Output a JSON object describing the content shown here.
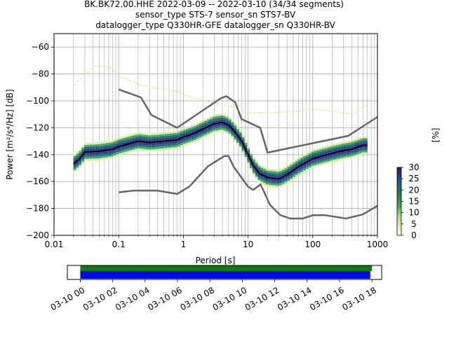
{
  "title": {
    "line1": "BK.BK72.00.HHE   2022-03-09 -- 2022-03-10  (34/34 segments)",
    "line2": "sensor_type STS-7 sensor_sn STS7-BV",
    "line3": "datalogger_type Q330HR-GFE datalogger_sn Q330HR-BV"
  },
  "colors": {
    "noise_model": "#666666",
    "mode_line": "#000000",
    "coverage_data": "#008000",
    "coverage_gaps": "#0000ff",
    "grid": "#b0b0b0"
  },
  "chart_data": [
    {
      "type": "heatmap",
      "name": "ppsd",
      "xlabel": "Period [s]",
      "ylabel": "Power [m²/s⁴/Hz] [dB]",
      "xscale": "log",
      "xlim": [
        0.01,
        1000
      ],
      "ylim": [
        -200,
        -50
      ],
      "xticks": [
        0.01,
        0.1,
        1,
        10,
        100,
        1000
      ],
      "xtick_labels": [
        "0.01",
        "0.1",
        "1",
        "10",
        "100",
        "1000"
      ],
      "yticks": [
        -200,
        -180,
        -160,
        -140,
        -120,
        -100,
        -80,
        -60
      ],
      "ytick_labels": [
        "−200",
        "−180",
        "−160",
        "−140",
        "−120",
        "−100",
        "−80",
        "−60"
      ],
      "grid": true,
      "colorbar": {
        "label": "[%]",
        "range": [
          0,
          30
        ],
        "ticks": [
          0,
          5,
          10,
          15,
          20,
          25,
          30
        ],
        "tick_labels": [
          "0",
          "5",
          "10",
          "15",
          "20",
          "25",
          "30"
        ],
        "colors": [
          "#ffffe5",
          "#d9f0a3",
          "#addd8e",
          "#41ab5d",
          "#238b45",
          "#1d6b7d",
          "#2c3e8a",
          "#3f0f5c"
        ]
      },
      "mode_line": {
        "period": [
          0.02,
          0.025,
          0.03,
          0.05,
          0.08,
          0.1,
          0.2,
          0.3,
          0.5,
          0.8,
          1,
          1.5,
          2,
          3,
          4,
          5,
          6,
          8,
          10,
          12,
          15,
          20,
          30,
          40,
          60,
          100,
          200,
          300,
          400,
          600,
          700
        ],
        "power": [
          -147,
          -143,
          -138,
          -137.5,
          -136,
          -134,
          -130,
          -131,
          -130,
          -129,
          -127,
          -124,
          -121,
          -117,
          -116,
          -118,
          -122,
          -130,
          -140,
          -148,
          -154,
          -157,
          -158,
          -155,
          -149,
          -143,
          -139,
          -137,
          -136,
          -133,
          -133
        ]
      },
      "noise_model_high": {
        "period": [
          0.1,
          0.22,
          0.32,
          0.8,
          3.8,
          4.6,
          6.3,
          7.9,
          15.4,
          20,
          354.8,
          1000
        ],
        "power": [
          -91.5,
          -97.4,
          -110.5,
          -120,
          -98,
          -96.5,
          -101,
          -113.5,
          -120,
          -138.5,
          -126,
          -112
        ]
      },
      "noise_model_low": {
        "period": [
          0.1,
          0.17,
          0.4,
          0.8,
          1.24,
          2.4,
          4.3,
          5,
          6,
          10,
          12,
          15.6,
          21.9,
          31.6,
          45,
          70,
          101,
          154,
          328,
          600,
          1000
        ],
        "power": [
          -168,
          -166.7,
          -166.7,
          -169.2,
          -163.7,
          -148.6,
          -141.1,
          -141.1,
          -149,
          -163.8,
          -166.2,
          -162.1,
          -177.5,
          -185,
          -187.5,
          -187.5,
          -185,
          -185,
          -187.5,
          -184.4,
          -178
        ]
      },
      "upper_tail": {
        "period": [
          0.02,
          0.03,
          0.04,
          0.07,
          0.1,
          0.2,
          0.4,
          0.8,
          1,
          2,
          3,
          5,
          8,
          10,
          20,
          50,
          100,
          200,
          400,
          700
        ],
        "power": [
          -88,
          -80,
          -74,
          -75,
          -82,
          -88,
          -91,
          -93,
          -96,
          -100,
          -102,
          -104,
          -107,
          -109,
          -109,
          -108,
          -106,
          -108,
          -110,
          -102
        ]
      }
    },
    {
      "type": "bar",
      "name": "data-coverage",
      "time_ticks": [
        "03-10 00",
        "03-10 02",
        "03-10 04",
        "03-10 06",
        "03-10 08",
        "03-10 10",
        "03-10 12",
        "03-10 14",
        "03-10 16",
        "03-10 18"
      ],
      "tick_hours": [
        0,
        2,
        4,
        6,
        8,
        10,
        12,
        14,
        16,
        18
      ],
      "xlim_hours": [
        -0.8,
        18.6
      ],
      "coverage_start_hour": 0,
      "coverage_end_hour": 18.0,
      "gap_end_hour": 17.9
    }
  ]
}
